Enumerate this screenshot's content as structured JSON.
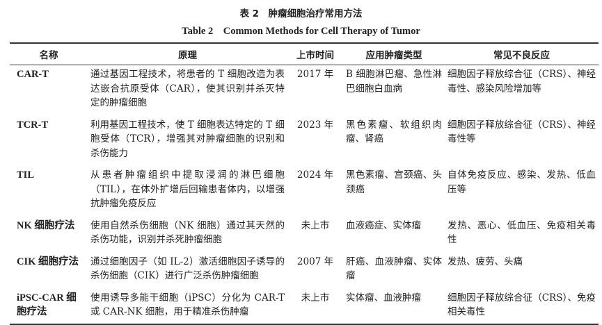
{
  "title": "表 2　肿瘤细胞治疗常用方法",
  "subtitle": "Table 2　Common Methods for Cell Therapy of Tumor",
  "headers": [
    "名称",
    "原理",
    "上市时间",
    "应用肿瘤类型",
    "常见不良反应"
  ],
  "rows": [
    {
      "name": "CAR-T",
      "principle": "通过基因工程技术，将患者的 T 细胞改造为表达嵌合抗原受体（CAR），使其识别并杀灭特定的肿瘤细胞",
      "year": "2017 年",
      "tumor": "B 细胞淋巴瘤、急性淋巴细胞白血病",
      "adverse": "细胞因子释放综合征（CRS）、神经毒性、感染风险增加等"
    },
    {
      "name": "TCR-T",
      "principle": "利用基因工程技术，使 T 细胞表达特定的 T 细胞受体（TCR），增强其对肿瘤细胞的识别和杀伤能力",
      "year": "2023 年",
      "tumor": "黑色素瘤、软组织肉瘤、肾癌",
      "adverse": "细胞因子释放综合征（CRS）、神经毒性等"
    },
    {
      "name": "TIL",
      "principle": "从患者肿瘤组织中提取浸润的淋巴细胞（TIL），在体外扩增后回输患者体内，以增强抗肿瘤免疫反应",
      "year": "2024 年",
      "tumor": "黑色素瘤、宫颈癌、头颈癌",
      "adverse": "自体免疫反应、感染、发热、低血压等"
    },
    {
      "name": "NK 细胞疗法",
      "principle": "使用自然杀伤细胞（NK 细胞）通过其天然的杀伤功能，识别并杀死肿瘤细胞",
      "year": "未上市",
      "tumor": "血液癌症、实体瘤",
      "adverse": "发热、恶心、低血压、免疫相关毒性"
    },
    {
      "name": "CIK 细胞疗法",
      "principle": "通过细胞因子（如 IL-2）激活细胞因子诱导的杀伤细胞（CIK）进行广泛杀伤肿瘤细胞",
      "year": "2007 年",
      "tumor": "肝癌、血液肿瘤、实体瘤",
      "adverse": "发热、疲劳、头痛"
    },
    {
      "name": "iPSC-CAR 细胞疗法",
      "principle": "使用诱导多能干细胞（iPSC）分化为 CAR-T 或 CAR-NK 细胞，用于精准杀伤肿瘤",
      "year": "未上市",
      "tumor": "实体瘤、血液肿瘤",
      "adverse": "细胞因子释放综合征（CRS）、免疫相关毒性"
    }
  ]
}
